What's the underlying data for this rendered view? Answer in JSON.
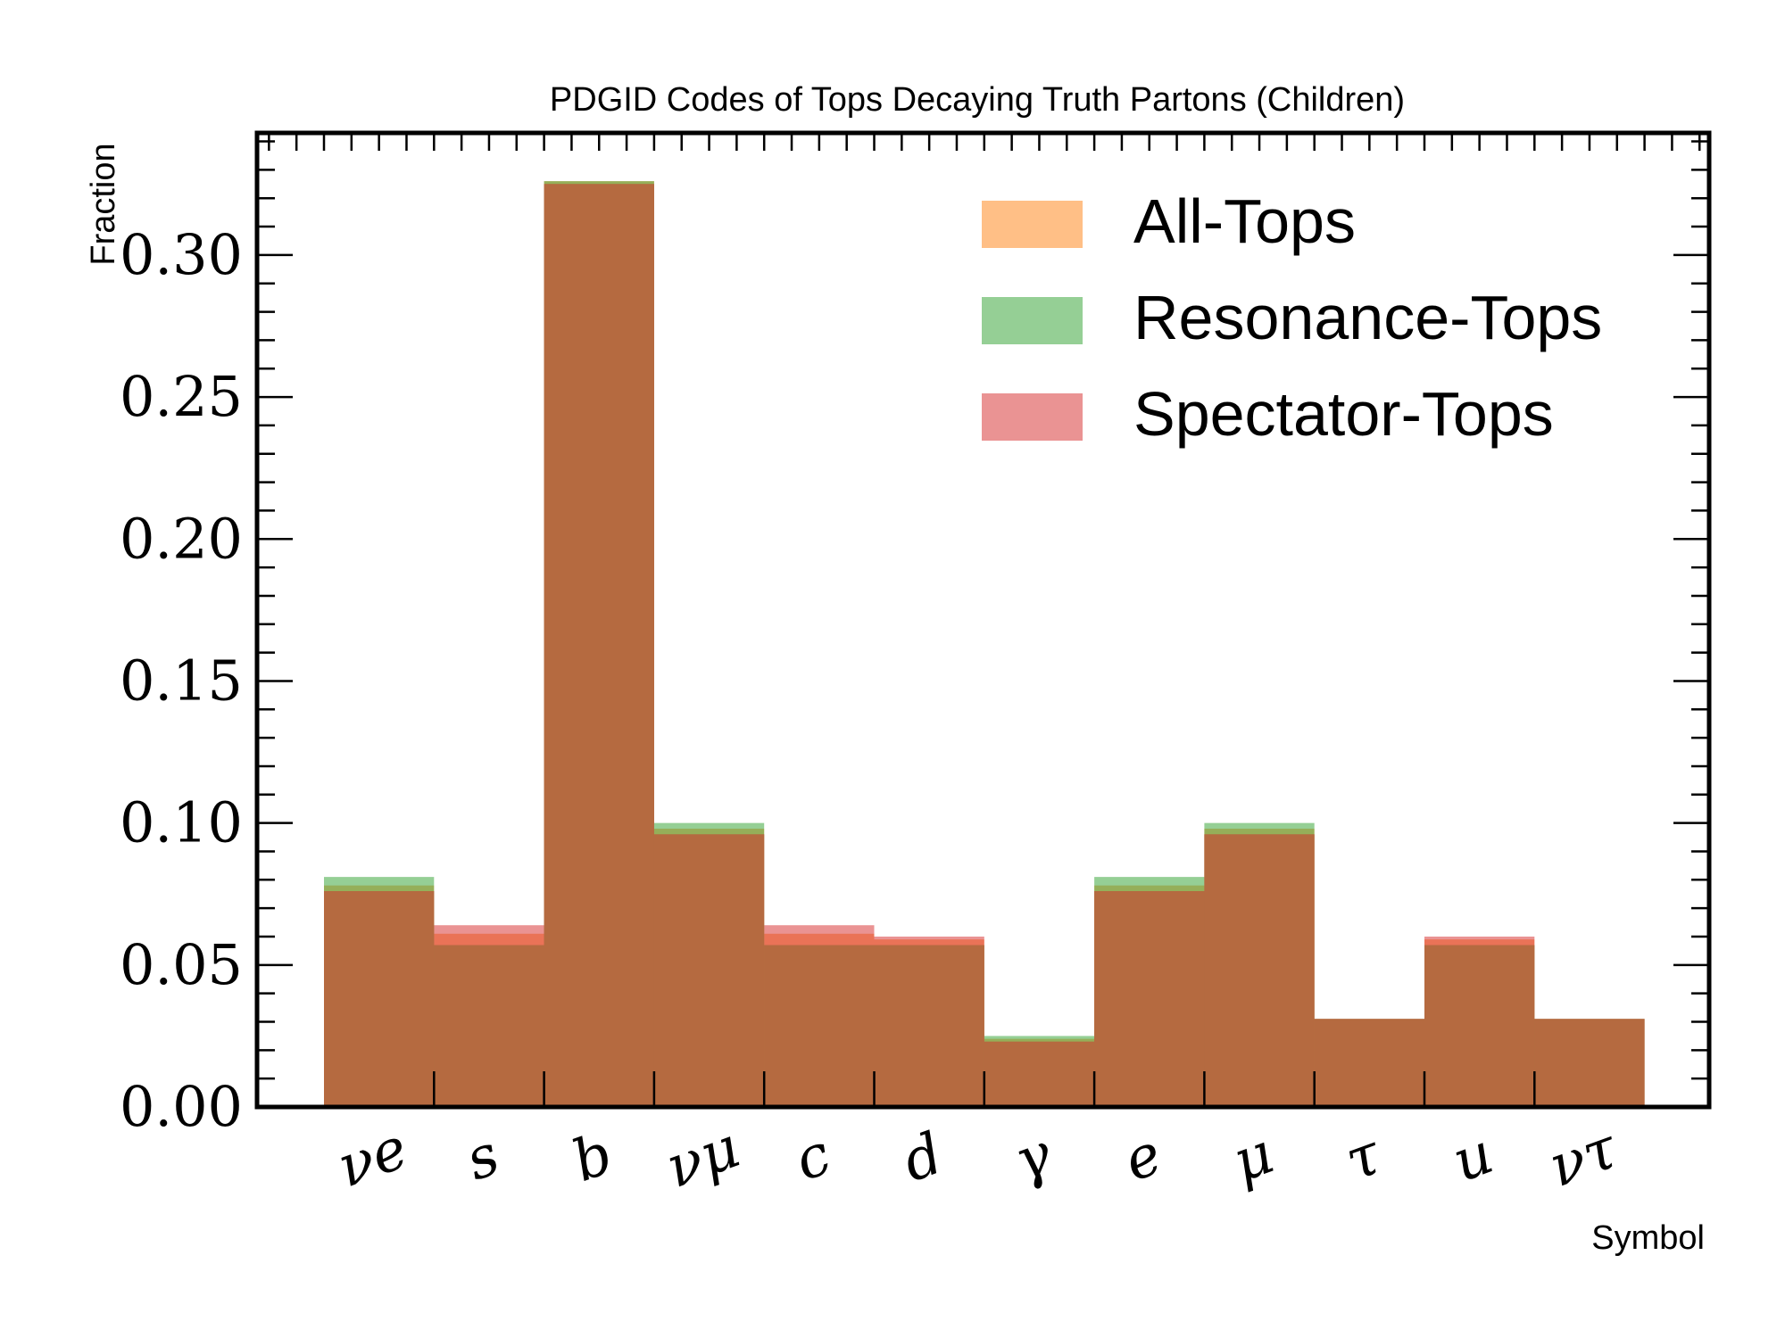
{
  "chart_data": {
    "type": "bar",
    "title": "PDGID Codes of Tops Decaying Truth Partons (Children)",
    "xlabel": "Symbol",
    "ylabel": "Fraction",
    "categories": [
      "νe",
      "s",
      "b",
      "νμ",
      "c",
      "d",
      "γ",
      "e",
      "μ",
      "τ",
      "u",
      "ντ"
    ],
    "ylim": [
      0,
      0.343
    ],
    "yticks": [
      "0.00",
      "0.05",
      "0.10",
      "0.15",
      "0.20",
      "0.25",
      "0.30"
    ],
    "legend_position": "top-right",
    "series": [
      {
        "name": "All-Tops",
        "color": "#ff7f0e",
        "values": [
          0.078,
          0.061,
          0.326,
          0.098,
          0.061,
          0.059,
          0.024,
          0.078,
          0.098,
          0.031,
          0.059,
          0.031
        ]
      },
      {
        "name": "Resonance-Tops",
        "color": "#2ca02c",
        "values": [
          0.081,
          0.057,
          0.326,
          0.1,
          0.057,
          0.057,
          0.025,
          0.081,
          0.1,
          0.031,
          0.057,
          0.031
        ]
      },
      {
        "name": "Spectator-Tops",
        "color": "#d62728",
        "values": [
          0.076,
          0.064,
          0.325,
          0.096,
          0.064,
          0.06,
          0.023,
          0.076,
          0.096,
          0.031,
          0.06,
          0.031
        ]
      }
    ],
    "overlap_color": "#b56a40"
  }
}
